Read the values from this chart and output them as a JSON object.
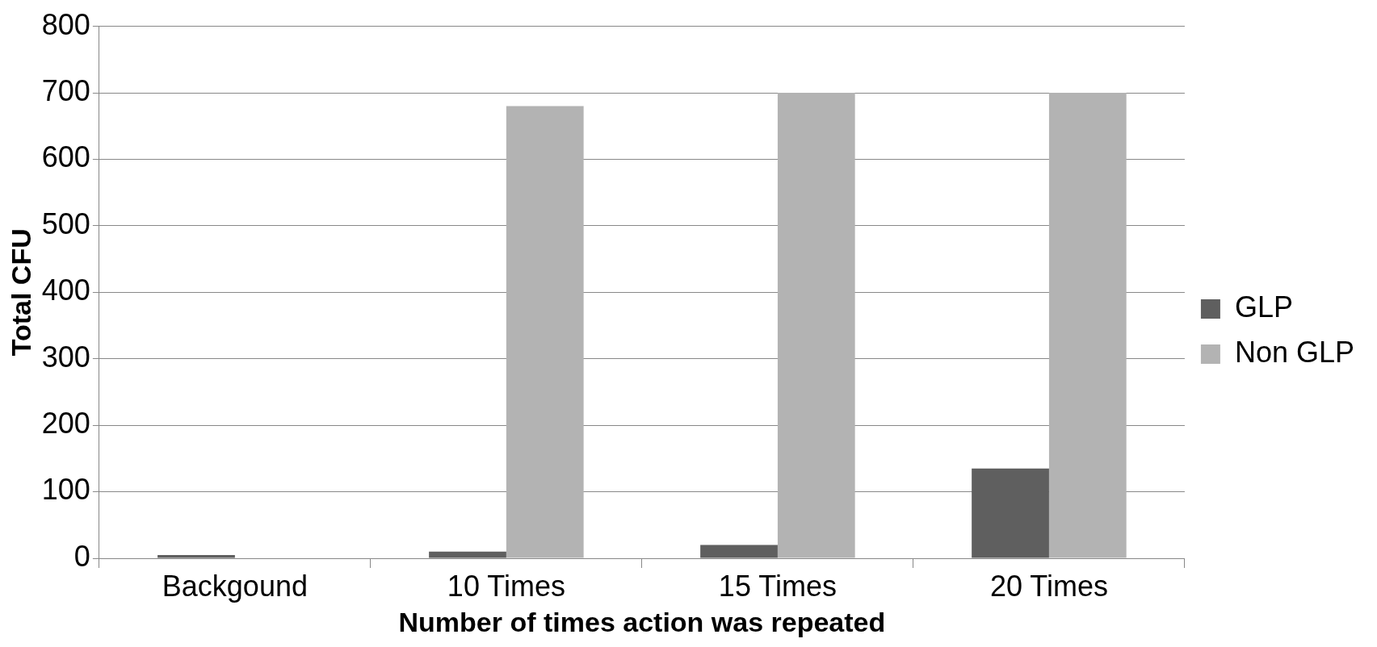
{
  "chart_data": {
    "type": "bar",
    "xlabel": "Number of times action was repeated",
    "ylabel": "Total CFU",
    "categories": [
      "Backgound",
      "10 Times",
      "15 Times",
      "20 Times"
    ],
    "series": [
      {
        "name": "GLP",
        "color": "#5f5f5f",
        "values": [
          5,
          10,
          20,
          135
        ]
      },
      {
        "name": "Non GLP",
        "color": "#b3b3b3",
        "values": [
          0,
          680,
          700,
          700
        ]
      }
    ],
    "ylim": [
      0,
      800
    ],
    "yticks": [
      0,
      100,
      200,
      300,
      400,
      500,
      600,
      700,
      800
    ],
    "grid": "y",
    "legend": "right"
  }
}
